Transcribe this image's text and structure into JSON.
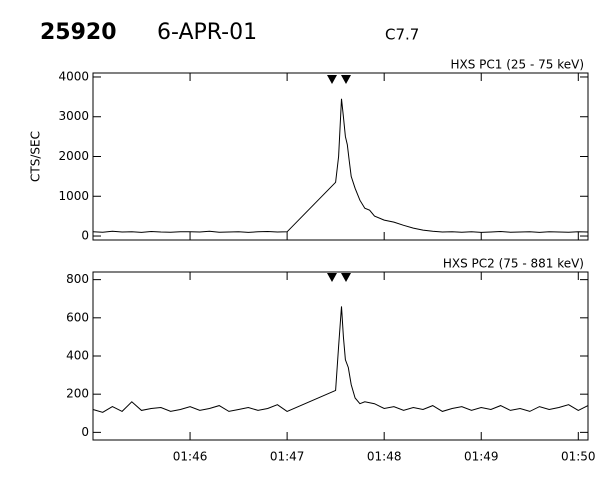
{
  "header": {
    "id": "25920",
    "date": "6-APR-01",
    "class": "C7.7"
  },
  "chart_data": [
    {
      "type": "line",
      "label": "HXS PC1 (25 - 75 keV)",
      "ylabel": "CTS/SEC",
      "color": "#000000",
      "xlim": [
        105,
        110.1
      ],
      "xticks": [
        106,
        107,
        108,
        109,
        110
      ],
      "ylim": [
        -100,
        4100
      ],
      "yticks": [
        0,
        1000,
        2000,
        3000,
        4000
      ],
      "x": [
        105.0,
        105.1,
        105.2,
        105.3,
        105.4,
        105.5,
        105.6,
        105.7,
        105.8,
        105.9,
        106.0,
        106.1,
        106.2,
        106.3,
        106.4,
        106.5,
        106.6,
        106.7,
        106.8,
        106.9,
        107.0,
        107.5,
        107.53,
        107.56,
        107.58,
        107.6,
        107.62,
        107.64,
        107.66,
        107.7,
        107.75,
        107.8,
        107.85,
        107.9,
        108.0,
        108.1,
        108.2,
        108.3,
        108.4,
        108.5,
        108.6,
        108.7,
        108.8,
        108.9,
        109.0,
        109.1,
        109.2,
        109.3,
        109.4,
        109.5,
        109.6,
        109.7,
        109.8,
        109.9,
        110.0,
        110.1
      ],
      "values": [
        110,
        95,
        120,
        100,
        105,
        90,
        115,
        100,
        95,
        110,
        105,
        100,
        120,
        95,
        100,
        110,
        90,
        105,
        115,
        100,
        105,
        1350,
        2000,
        3450,
        3000,
        2500,
        2300,
        1900,
        1500,
        1200,
        900,
        700,
        650,
        500,
        400,
        350,
        270,
        200,
        150,
        120,
        100,
        110,
        95,
        105,
        90,
        100,
        115,
        95,
        100,
        105,
        90,
        110,
        100,
        95,
        105,
        100
      ]
    },
    {
      "type": "line",
      "label": "HXS PC2 (75 - 881 keV)",
      "color": "#000000",
      "xlim": [
        105,
        110.1
      ],
      "xticks": [
        {
          "value": 106,
          "label": "01:46"
        },
        {
          "value": 107,
          "label": "01:47"
        },
        {
          "value": 108,
          "label": "01:48"
        },
        {
          "value": 109,
          "label": "01:49"
        },
        {
          "value": 110,
          "label": "01:50"
        }
      ],
      "ylim": [
        -40,
        840
      ],
      "yticks": [
        0,
        200,
        400,
        600,
        800
      ],
      "x": [
        105.0,
        105.1,
        105.2,
        105.3,
        105.4,
        105.5,
        105.6,
        105.7,
        105.8,
        105.9,
        106.0,
        106.1,
        106.2,
        106.3,
        106.4,
        106.5,
        106.6,
        106.7,
        106.8,
        106.9,
        107.0,
        107.5,
        107.53,
        107.56,
        107.58,
        107.6,
        107.63,
        107.66,
        107.7,
        107.75,
        107.8,
        107.9,
        108.0,
        108.1,
        108.2,
        108.3,
        108.4,
        108.5,
        108.6,
        108.7,
        108.8,
        108.9,
        109.0,
        109.1,
        109.2,
        109.3,
        109.4,
        109.5,
        109.6,
        109.7,
        109.8,
        109.9,
        110.0,
        110.1
      ],
      "values": [
        120,
        105,
        135,
        110,
        160,
        115,
        125,
        130,
        110,
        120,
        135,
        115,
        125,
        140,
        110,
        120,
        130,
        115,
        125,
        145,
        110,
        220,
        450,
        660,
        500,
        380,
        340,
        250,
        180,
        150,
        160,
        150,
        125,
        135,
        115,
        130,
        120,
        140,
        110,
        125,
        135,
        115,
        130,
        120,
        140,
        115,
        125,
        110,
        135,
        120,
        130,
        145,
        115,
        140
      ]
    }
  ]
}
